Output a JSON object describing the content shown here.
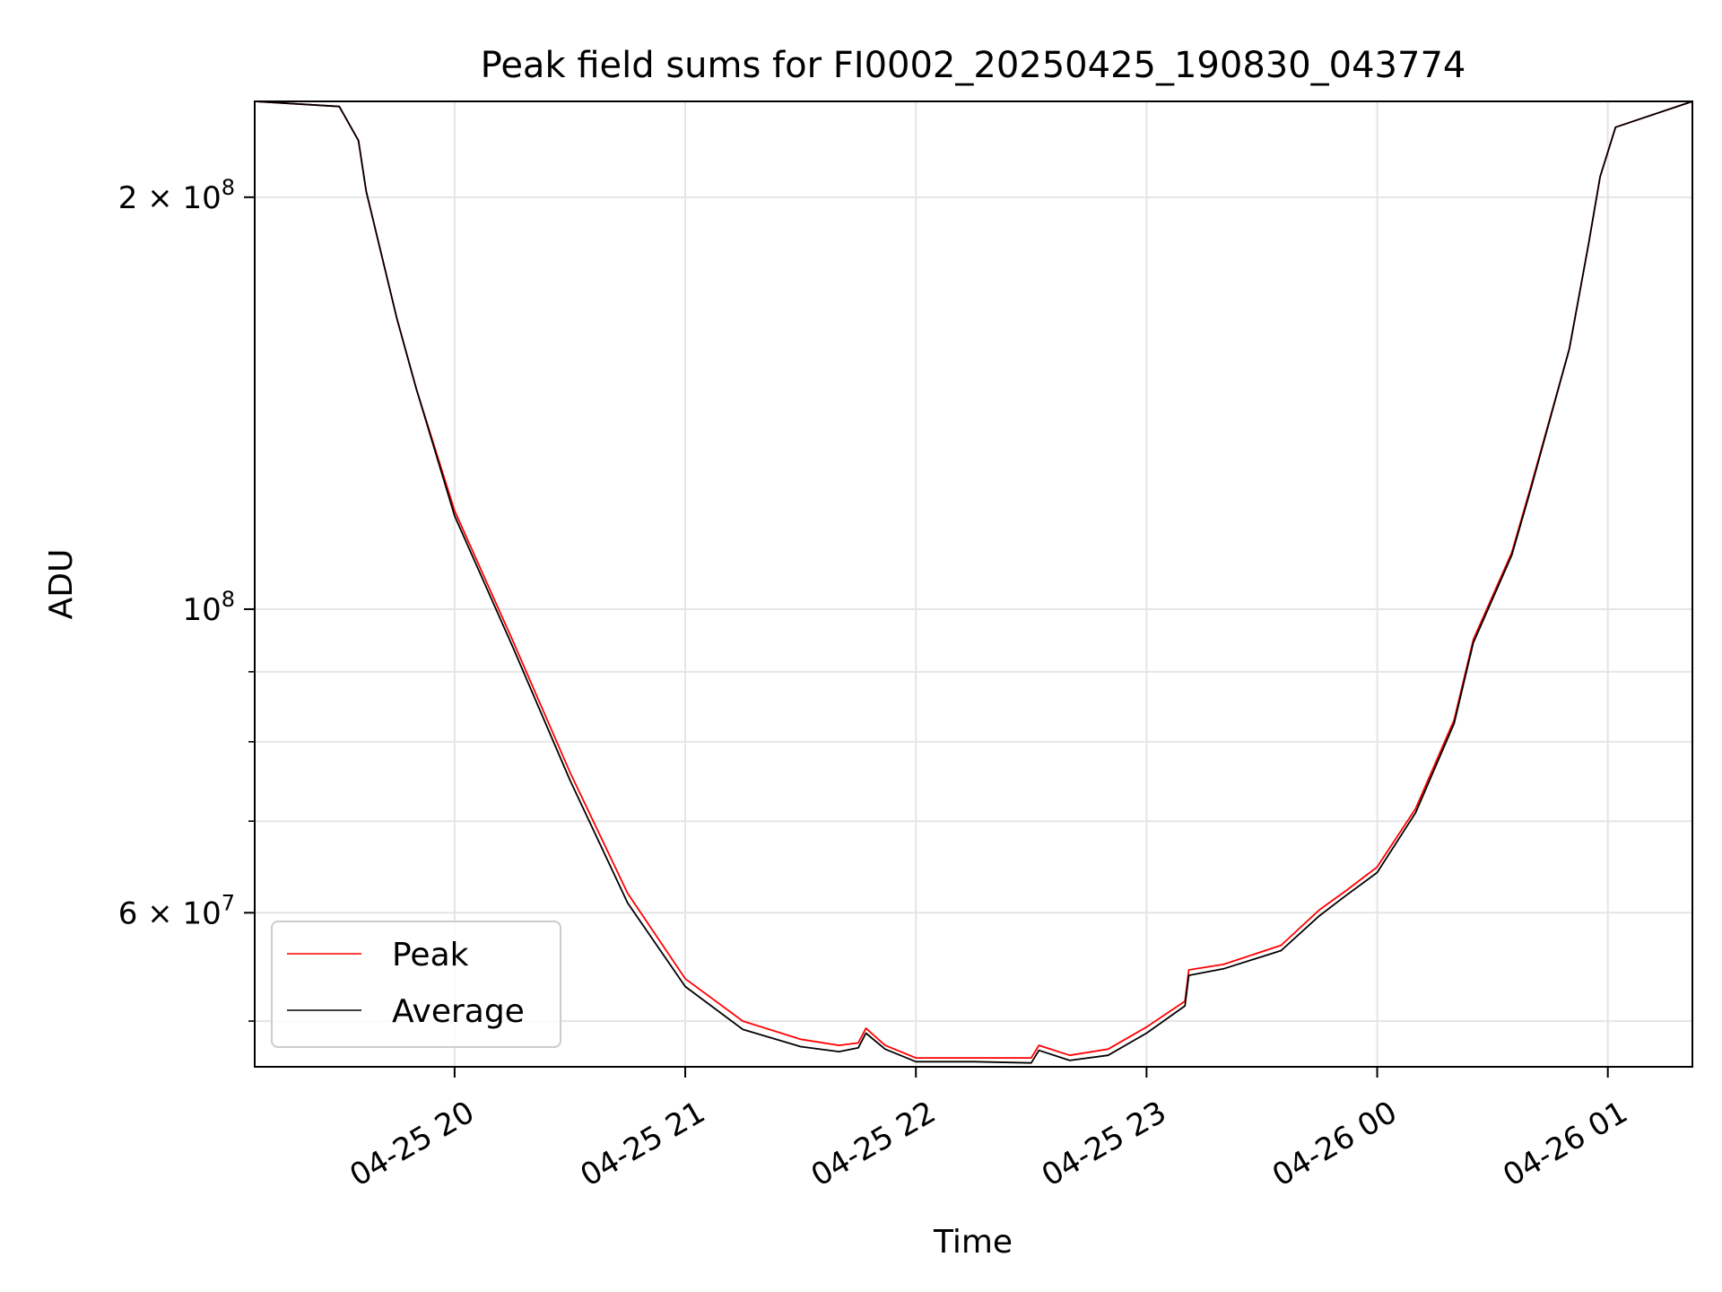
{
  "chart_data": {
    "type": "line",
    "title": "Peak field sums for FI0002_20250425_190830_043774",
    "xlabel": "Time",
    "ylabel": "ADU",
    "y_scale": "log",
    "grid": true,
    "legend_position": "lower-left",
    "xlim": [
      "2025-04-25 19:08",
      "2025-04-26 01:22"
    ],
    "ylim": [
      46300000,
      235000000
    ],
    "x_ticks": [
      {
        "label": "04-25 20",
        "value": "2025-04-25 20:00"
      },
      {
        "label": "04-25 21",
        "value": "2025-04-25 21:00"
      },
      {
        "label": "04-25 22",
        "value": "2025-04-25 22:00"
      },
      {
        "label": "04-25 23",
        "value": "2025-04-25 23:00"
      },
      {
        "label": "04-26 00",
        "value": "2025-04-26 00:00"
      },
      {
        "label": "04-26 01",
        "value": "2025-04-26 01:00"
      }
    ],
    "y_major_ticks": [
      {
        "value": 100000000,
        "mantissa": "",
        "base": "10",
        "exponent": "8"
      },
      {
        "value": 200000000,
        "mantissa": "2 × ",
        "base": "10",
        "exponent": "8"
      },
      {
        "value": 60000000,
        "mantissa": "6 × ",
        "base": "10",
        "exponent": "7"
      }
    ],
    "y_minor_ticks": [
      50000000,
      70000000,
      80000000,
      90000000
    ],
    "series": [
      {
        "name": "Peak",
        "color": "#ff0000",
        "points": [
          [
            "2025-04-25 19:08",
            235000000
          ],
          [
            "2025-04-25 19:30",
            233000000
          ],
          [
            "2025-04-25 19:35",
            220000000
          ],
          [
            "2025-04-25 19:37",
            202000000
          ],
          [
            "2025-04-25 19:45",
            163000000
          ],
          [
            "2025-04-25 19:50",
            145000000
          ],
          [
            "2025-04-25 20:00",
            118000000
          ],
          [
            "2025-04-25 20:15",
            95000000
          ],
          [
            "2025-04-25 20:30",
            76000000
          ],
          [
            "2025-04-25 20:45",
            62000000
          ],
          [
            "2025-04-25 21:00",
            53700000
          ],
          [
            "2025-04-25 21:15",
            50000000
          ],
          [
            "2025-04-25 21:30",
            48500000
          ],
          [
            "2025-04-25 21:40",
            48000000
          ],
          [
            "2025-04-25 21:45",
            48200000
          ],
          [
            "2025-04-25 21:47",
            49400000
          ],
          [
            "2025-04-25 21:52",
            48000000
          ],
          [
            "2025-04-25 22:00",
            47000000
          ],
          [
            "2025-04-25 22:15",
            47000000
          ],
          [
            "2025-04-25 22:30",
            47000000
          ],
          [
            "2025-04-25 22:32",
            48000000
          ],
          [
            "2025-04-25 22:40",
            47200000
          ],
          [
            "2025-04-25 22:50",
            47700000
          ],
          [
            "2025-04-25 23:00",
            49500000
          ],
          [
            "2025-04-25 23:10",
            51700000
          ],
          [
            "2025-04-25 23:11",
            54500000
          ],
          [
            "2025-04-25 23:20",
            55000000
          ],
          [
            "2025-04-25 23:35",
            56800000
          ],
          [
            "2025-04-25 23:45",
            60300000
          ],
          [
            "2025-04-25 23:52",
            62300000
          ],
          [
            "2025-04-26 00:00",
            64800000
          ],
          [
            "2025-04-26 00:10",
            71500000
          ],
          [
            "2025-04-26 00:20",
            83000000
          ],
          [
            "2025-04-26 00:25",
            95000000
          ],
          [
            "2025-04-26 00:35",
            110000000
          ],
          [
            "2025-04-26 00:40",
            123000000
          ],
          [
            "2025-04-26 00:50",
            155000000
          ],
          [
            "2025-04-26 00:55",
            185000000
          ],
          [
            "2025-04-26 00:58",
            207000000
          ],
          [
            "2025-04-26 01:02",
            225000000
          ],
          [
            "2025-04-26 01:22",
            235000000
          ]
        ]
      },
      {
        "name": "Average",
        "color": "#000000",
        "points": [
          [
            "2025-04-25 19:08",
            235000000
          ],
          [
            "2025-04-25 19:30",
            233000000
          ],
          [
            "2025-04-25 19:35",
            220000000
          ],
          [
            "2025-04-25 19:37",
            202000000
          ],
          [
            "2025-04-25 19:45",
            163000000
          ],
          [
            "2025-04-25 19:50",
            145000000
          ],
          [
            "2025-04-25 20:00",
            117000000
          ],
          [
            "2025-04-25 20:15",
            94000000
          ],
          [
            "2025-04-25 20:30",
            75000000
          ],
          [
            "2025-04-25 20:45",
            61000000
          ],
          [
            "2025-04-25 21:00",
            53000000
          ],
          [
            "2025-04-25 21:15",
            49300000
          ],
          [
            "2025-04-25 21:30",
            47900000
          ],
          [
            "2025-04-25 21:40",
            47500000
          ],
          [
            "2025-04-25 21:45",
            47800000
          ],
          [
            "2025-04-25 21:47",
            49000000
          ],
          [
            "2025-04-25 21:52",
            47700000
          ],
          [
            "2025-04-25 22:00",
            46700000
          ],
          [
            "2025-04-25 22:15",
            46700000
          ],
          [
            "2025-04-25 22:30",
            46600000
          ],
          [
            "2025-04-25 22:32",
            47600000
          ],
          [
            "2025-04-25 22:40",
            46800000
          ],
          [
            "2025-04-25 22:50",
            47200000
          ],
          [
            "2025-04-25 23:00",
            49000000
          ],
          [
            "2025-04-25 23:10",
            51300000
          ],
          [
            "2025-04-25 23:11",
            54000000
          ],
          [
            "2025-04-25 23:20",
            54600000
          ],
          [
            "2025-04-25 23:35",
            56300000
          ],
          [
            "2025-04-25 23:45",
            59700000
          ],
          [
            "2025-04-25 23:52",
            61800000
          ],
          [
            "2025-04-26 00:00",
            64200000
          ],
          [
            "2025-04-26 00:10",
            71000000
          ],
          [
            "2025-04-26 00:20",
            82500000
          ],
          [
            "2025-04-26 00:25",
            94500000
          ],
          [
            "2025-04-26 00:35",
            109500000
          ],
          [
            "2025-04-26 00:40",
            122500000
          ],
          [
            "2025-04-26 00:50",
            155000000
          ],
          [
            "2025-04-26 00:55",
            185000000
          ],
          [
            "2025-04-26 00:58",
            207000000
          ],
          [
            "2025-04-26 01:02",
            225000000
          ],
          [
            "2025-04-26 01:22",
            235000000
          ]
        ]
      }
    ]
  }
}
